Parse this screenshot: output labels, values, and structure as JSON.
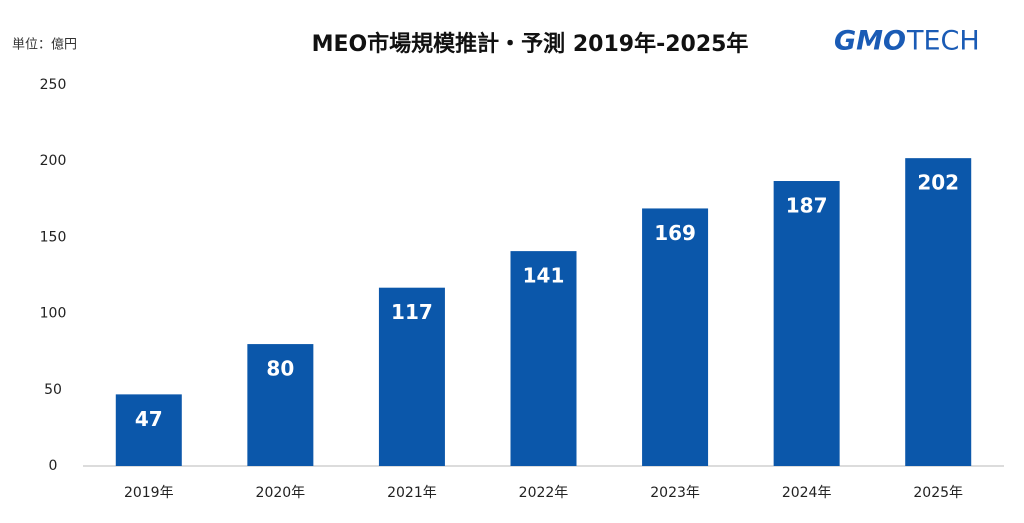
{
  "chart_data": {
    "type": "bar",
    "title": "MEO市場規模推計・予測 2019年-2025年",
    "unit_label": "単位：億円",
    "logo_mark": "GMO",
    "logo_text": "TECH",
    "categories": [
      "2019年",
      "2020年",
      "2021年",
      "2022年",
      "2023年",
      "2024年",
      "2025年"
    ],
    "values": [
      47,
      80,
      117,
      141,
      169,
      187,
      202
    ],
    "color": "#0b57aa",
    "ylim": [
      0,
      250
    ],
    "yticks": [
      0,
      50,
      100,
      150,
      200,
      250
    ],
    "grid": false,
    "data_labels": true
  }
}
